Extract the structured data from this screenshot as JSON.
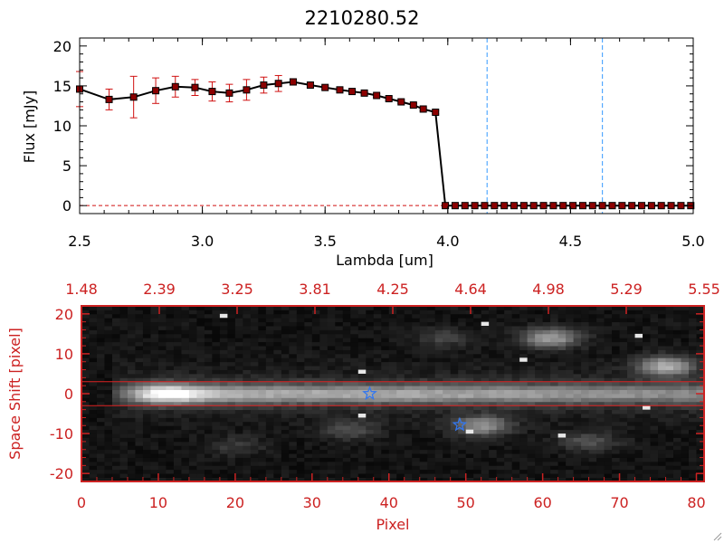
{
  "chart_data": [
    {
      "type": "line",
      "title": "2210280.52",
      "xlabel": "Lambda [um]",
      "ylabel": "Flux [mJy]",
      "xlim": [
        2.5,
        5.0
      ],
      "ylim": [
        -1,
        21
      ],
      "x_ticks": [
        "2.5",
        "3.0",
        "3.5",
        "4.0",
        "4.5",
        "5.0"
      ],
      "y_ticks": [
        "0",
        "5",
        "10",
        "15",
        "20"
      ],
      "series": [
        {
          "color": "#000000",
          "marker_color": "#8b0000",
          "errorbar_color": "#d01010",
          "x": [
            2.5,
            2.62,
            2.72,
            2.81,
            2.89,
            2.97,
            3.04,
            3.11,
            3.18,
            3.25,
            3.31,
            3.37,
            3.44,
            3.5,
            3.56,
            3.61,
            3.66,
            3.71,
            3.76,
            3.81,
            3.86,
            3.9,
            3.95,
            3.99,
            4.03,
            4.07,
            4.11,
            4.15,
            4.19,
            4.23,
            4.27,
            4.31,
            4.35,
            4.39,
            4.43,
            4.47,
            4.51,
            4.55,
            4.59,
            4.63,
            4.67,
            4.71,
            4.75,
            4.79,
            4.83,
            4.87,
            4.91,
            4.95,
            4.99
          ],
          "y": [
            14.6,
            13.3,
            13.6,
            14.4,
            14.9,
            14.8,
            14.3,
            14.1,
            14.5,
            15.1,
            15.3,
            15.5,
            15.1,
            14.8,
            14.5,
            14.3,
            14.1,
            13.8,
            13.4,
            13.0,
            12.6,
            12.1,
            11.7,
            0.0,
            0.0,
            0.0,
            0.0,
            0.0,
            0.0,
            0.0,
            0.0,
            0.0,
            0.0,
            0.0,
            0.0,
            0.0,
            0.0,
            0.0,
            0.0,
            0.0,
            0.0,
            0.0,
            0.0,
            0.0,
            0.0,
            0.0,
            0.0,
            0.0,
            0.0
          ],
          "yerr": [
            2.2,
            1.3,
            2.6,
            1.6,
            1.3,
            1.0,
            1.2,
            1.1,
            1.3,
            1.0,
            1.0,
            0.4,
            0.3,
            0.2,
            0.2,
            0.2,
            0.2,
            0.2,
            0.2,
            0.2,
            0.2,
            0.2,
            0.2,
            0.0,
            0.0,
            0.0,
            0.0,
            0.0,
            0.0,
            0.0,
            0.0,
            0.0,
            0.0,
            0.0,
            0.0,
            0.0,
            0.0,
            0.0,
            0.0,
            0.0,
            0.0,
            0.0,
            0.0,
            0.0,
            0.0,
            0.0,
            0.0,
            0.0,
            0.0
          ]
        }
      ],
      "vlines": [
        {
          "x": 4.16,
          "color": "#3399ff",
          "style": "dashed"
        },
        {
          "x": 4.63,
          "color": "#3399ff",
          "style": "dashed"
        }
      ],
      "hline": {
        "y": 0,
        "color": "#d01010",
        "style": "dashed"
      },
      "grid": false
    },
    {
      "type": "heatmap",
      "xlabel": "Pixel",
      "ylabel": "Space Shift [pixel]",
      "xlim": [
        0,
        81
      ],
      "ylim": [
        -22,
        22
      ],
      "x_ticks": [
        "0",
        "10",
        "20",
        "30",
        "40",
        "50",
        "60",
        "70",
        "80"
      ],
      "y_ticks": [
        "-20",
        "-10",
        "0",
        "10",
        "20"
      ],
      "top_ticks": [
        "1.48",
        "2.39",
        "3.25",
        "3.81",
        "4.25",
        "4.64",
        "4.98",
        "5.29",
        "5.55"
      ],
      "axis_color": "#cc2222",
      "colormap": "grayscale",
      "trace": {
        "x_start": 7,
        "x_end": 81,
        "y": 0,
        "peak_x": 11
      },
      "blobs": [
        {
          "x": 61,
          "y": 14,
          "amp": 0.55
        },
        {
          "x": 76,
          "y": 7,
          "amp": 0.6
        },
        {
          "x": 52,
          "y": -8,
          "amp": 0.5
        },
        {
          "x": 35,
          "y": -9,
          "amp": 0.22
        },
        {
          "x": 47,
          "y": 14,
          "amp": 0.18
        },
        {
          "x": 20,
          "y": -13,
          "amp": 0.15
        },
        {
          "x": 66,
          "y": -12,
          "amp": 0.25
        }
      ],
      "hot_pixels": [
        {
          "x": 36,
          "y": 5
        },
        {
          "x": 52,
          "y": 17
        },
        {
          "x": 62,
          "y": -11
        },
        {
          "x": 73,
          "y": -4
        },
        {
          "x": 36,
          "y": -6
        },
        {
          "x": 50,
          "y": -10
        },
        {
          "x": 57,
          "y": 8
        },
        {
          "x": 18,
          "y": 19
        },
        {
          "x": 72,
          "y": 14
        }
      ],
      "range_lines": [
        {
          "y": 3,
          "color": "#dd2222"
        },
        {
          "y": -3,
          "color": "#dd2222"
        }
      ],
      "markers": [
        {
          "x": 37.5,
          "y": 0,
          "symbol": "star",
          "color": "#3377ee"
        },
        {
          "x": 49.2,
          "y": -7.8,
          "symbol": "star",
          "color": "#3377ee"
        }
      ]
    }
  ]
}
